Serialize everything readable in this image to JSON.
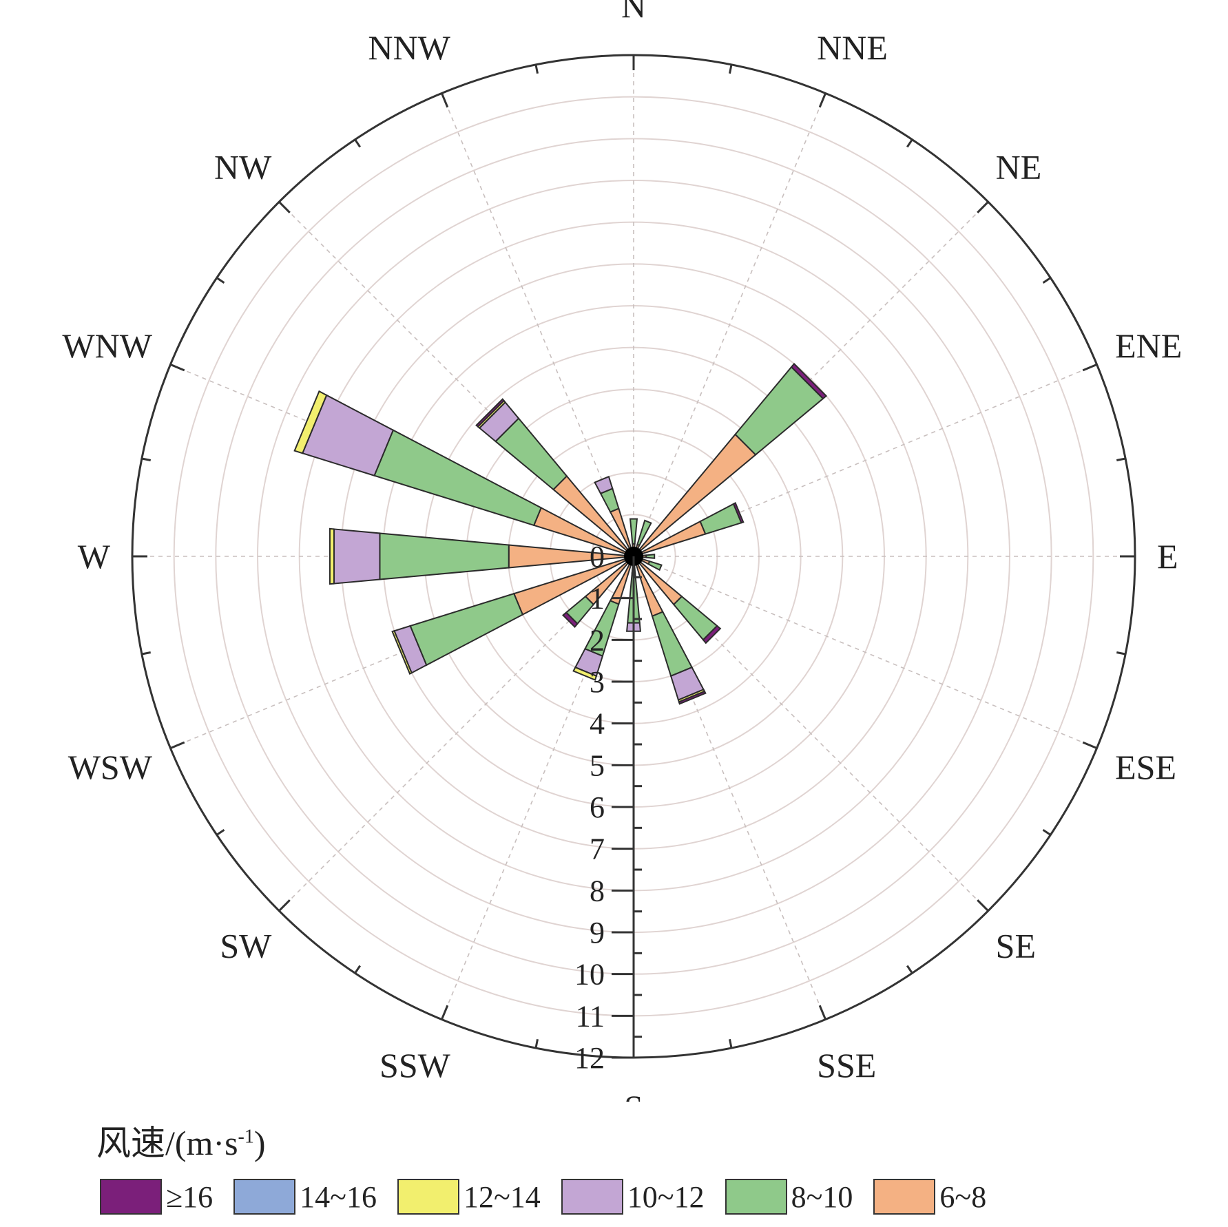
{
  "chart_data": {
    "type": "wind-rose",
    "directions": [
      "N",
      "NNE",
      "NE",
      "ENE",
      "E",
      "ESE",
      "SE",
      "SSE",
      "S",
      "SSW",
      "SW",
      "WSW",
      "W",
      "WNW",
      "NW",
      "NNW"
    ],
    "radial_ticks": [
      "0",
      "1",
      "2",
      "3",
      "4",
      "5",
      "6",
      "7",
      "8",
      "9",
      "10",
      "11",
      "12"
    ],
    "rlim": [
      0,
      12
    ],
    "grid": true,
    "legend": {
      "title_main": "风速/(m·s",
      "title_sup": "-1",
      "title_end": ")",
      "position": "bottom"
    },
    "series": [
      {
        "name": "6~8",
        "color": "#F4B183"
      },
      {
        "name": "8~10",
        "color": "#8FC98A"
      },
      {
        "name": "10~12",
        "color": "#C3A6D4"
      },
      {
        "name": "12~14",
        "color": "#F2EF6E"
      },
      {
        "name": "14~16",
        "color": "#8EA9D8"
      },
      {
        "name": "≥16",
        "color": "#7B1F7A"
      }
    ],
    "legend_order": [
      "≥16",
      "14~16",
      "12~14",
      "10~12",
      "8~10",
      "6~8"
    ],
    "values": {
      "N": [
        0.3,
        0.6,
        0.0,
        0.0,
        0.0,
        0.0
      ],
      "NNE": [
        0.3,
        0.6,
        0.0,
        0.0,
        0.0,
        0.0
      ],
      "NE": [
        3.8,
        2.1,
        0.0,
        0.0,
        0.0,
        0.1
      ],
      "ENE": [
        1.8,
        0.9,
        0.0,
        0.0,
        0.0,
        0.05
      ],
      "E": [
        0.3,
        0.2,
        0.0,
        0.0,
        0.0,
        0.0
      ],
      "ESE": [
        0.4,
        0.3,
        0.0,
        0.0,
        0.0,
        0.0
      ],
      "SE": [
        1.5,
        1.1,
        0.0,
        0.0,
        0.0,
        0.1
      ],
      "SSE": [
        1.5,
        1.5,
        0.6,
        0.05,
        0.0,
        0.05
      ],
      "S": [
        0.4,
        1.2,
        0.2,
        0.0,
        0.0,
        0.0
      ],
      "SSW": [
        1.2,
        1.3,
        0.5,
        0.1,
        0.0,
        0.0
      ],
      "SW": [
        1.5,
        0.6,
        0.0,
        0.0,
        0.0,
        0.1
      ],
      "WSW": [
        3.0,
        2.6,
        0.4,
        0.05,
        0.0,
        0.0
      ],
      "W": [
        3.0,
        3.1,
        1.1,
        0.1,
        0.0,
        0.0
      ],
      "WNW": [
        2.5,
        4.0,
        1.8,
        0.2,
        0.0,
        0.0
      ],
      "NW": [
        2.5,
        1.8,
        0.5,
        0.05,
        0.0,
        0.05
      ],
      "NNW": [
        1.2,
        0.5,
        0.3,
        0.0,
        0.0,
        0.0
      ]
    }
  }
}
